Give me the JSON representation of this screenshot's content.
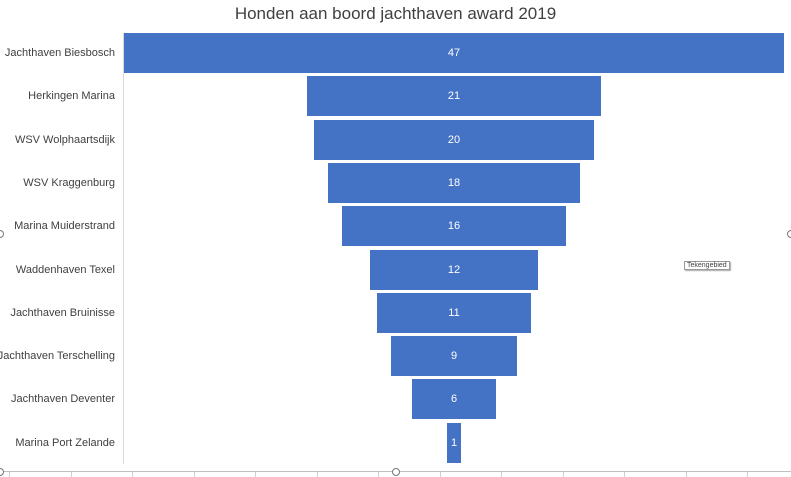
{
  "chart_data": {
    "type": "funnel",
    "title": "Honden aan boord jachthaven award 2019",
    "categories": [
      "Jachthaven Biesbosch",
      "Herkingen Marina",
      "WSV Wolphaartsdijk",
      "WSV Kraggenburg",
      "Marina Muiderstrand",
      "Waddenhaven Texel",
      "Jachthaven Bruinisse",
      "Jachthaven Terschelling",
      "Jachthaven Deventer",
      "Marina Port Zelande"
    ],
    "values": [
      47,
      21,
      20,
      18,
      16,
      12,
      11,
      9,
      6,
      1
    ],
    "data_labels": true,
    "bar_color": "#4472c4"
  },
  "tooltip": "Tekengebied"
}
